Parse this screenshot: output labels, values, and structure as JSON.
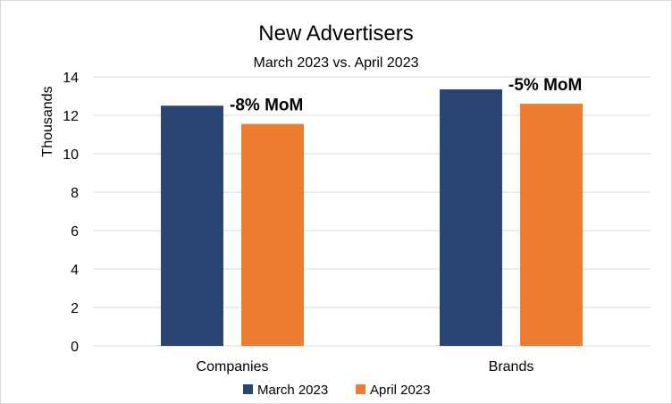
{
  "chart_data": {
    "type": "bar",
    "title": "New Advertisers",
    "subtitle": "March 2023 vs. April 2023",
    "ylabel": "Thousands",
    "xlabel": "",
    "ylim": [
      0,
      14
    ],
    "yticks": [
      0,
      2,
      4,
      6,
      8,
      10,
      12,
      14
    ],
    "categories": [
      "Companies",
      "Brands"
    ],
    "series": [
      {
        "name": "March 2023",
        "color": "#2a4574",
        "values": [
          12.5,
          13.35
        ]
      },
      {
        "name": "April 2023",
        "color": "#ed7d31",
        "values": [
          11.55,
          12.6
        ]
      }
    ],
    "annotations": [
      "-8% MoM",
      "-5% MoM"
    ],
    "grid": true,
    "legend": "bottom"
  }
}
